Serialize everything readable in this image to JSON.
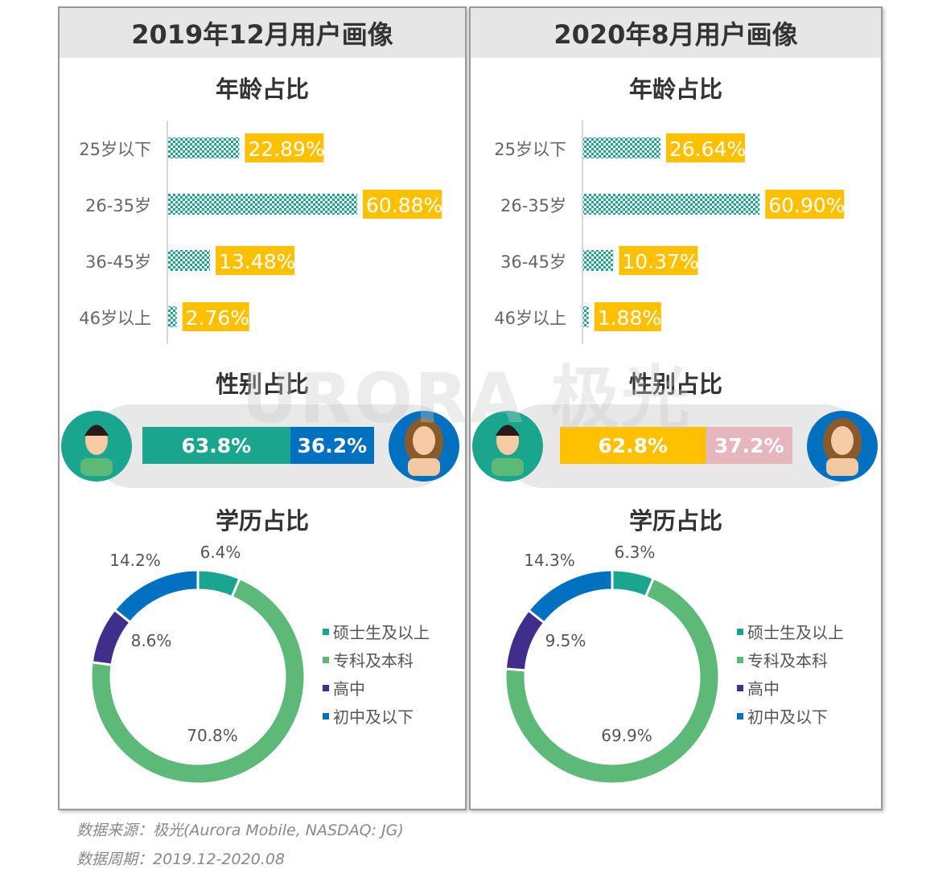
{
  "watermark": "URORA 极光",
  "section_titles": {
    "age": "年龄占比",
    "gender": "性别占比",
    "edu": "学历占比"
  },
  "colors": {
    "teal": "#1aa68e",
    "yellow": "#ffc000",
    "green": "#5cb978",
    "purple": "#3f2e8c",
    "blue": "#0070c0",
    "pink": "#e6b6bd",
    "grey_band": "#e8e8e8"
  },
  "chart_data": [
    {
      "title": "2019年12月用户画像",
      "age": {
        "type": "bar",
        "orientation": "horizontal",
        "categories": [
          "25岁以下",
          "26-35岁",
          "36-45岁",
          "46岁以上"
        ],
        "values": [
          22.89,
          60.88,
          13.48,
          2.76
        ],
        "labels": [
          "22.89%",
          "60.88%",
          "13.48%",
          "2.76%"
        ]
      },
      "gender": {
        "type": "bar",
        "stacked": true,
        "series": [
          {
            "name": "male",
            "value": 63.8,
            "label": "63.8%",
            "color": "#1aa68e"
          },
          {
            "name": "female",
            "value": 36.2,
            "label": "36.2%",
            "color": "#0070c0"
          }
        ]
      },
      "edu": {
        "type": "pie",
        "donut": true,
        "categories": [
          "硕士生及以上",
          "专科及本科",
          "高中",
          "初中及以下"
        ],
        "values": [
          6.4,
          70.8,
          8.6,
          14.2
        ],
        "labels": [
          "6.4%",
          "70.8%",
          "8.6%",
          "14.2%"
        ],
        "colors": [
          "#1aa68e",
          "#5cb978",
          "#3f2e8c",
          "#0070c0"
        ],
        "legend": "right"
      }
    },
    {
      "title": "2020年8月用户画像",
      "age": {
        "type": "bar",
        "orientation": "horizontal",
        "categories": [
          "25岁以下",
          "26-35岁",
          "36-45岁",
          "46岁以上"
        ],
        "values": [
          26.64,
          60.9,
          10.37,
          1.88
        ],
        "labels": [
          "26.64%",
          "60.90%",
          "10.37%",
          "1.88%"
        ]
      },
      "gender": {
        "type": "bar",
        "stacked": true,
        "series": [
          {
            "name": "male",
            "value": 62.8,
            "label": "62.8%",
            "color": "#ffc000"
          },
          {
            "name": "female",
            "value": 37.2,
            "label": "37.2%",
            "color": "#e6b6bd"
          }
        ]
      },
      "edu": {
        "type": "pie",
        "donut": true,
        "categories": [
          "硕士生及以上",
          "专科及本科",
          "高中",
          "初中及以下"
        ],
        "values": [
          6.3,
          69.9,
          9.5,
          14.3
        ],
        "labels": [
          "6.3%",
          "69.9%",
          "9.5%",
          "14.3%"
        ],
        "colors": [
          "#1aa68e",
          "#5cb978",
          "#3f2e8c",
          "#0070c0"
        ],
        "legend": "right"
      }
    }
  ],
  "footer": {
    "source": "数据来源：极光(Aurora Mobile, NASDAQ: JG)",
    "period": "数据周期：2019.12-2020.08"
  }
}
